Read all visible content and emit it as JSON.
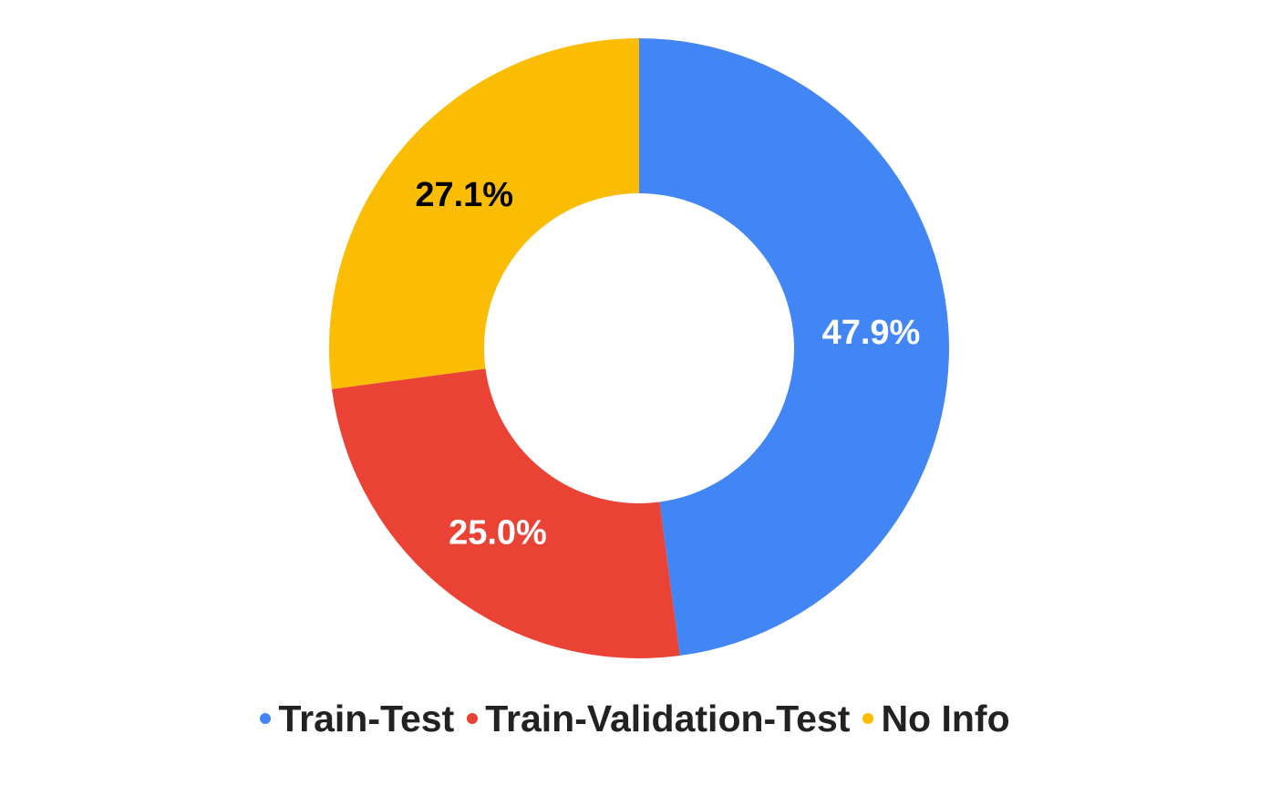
{
  "chart_data": {
    "type": "pie",
    "donut": true,
    "legend_position": "bottom",
    "title": "",
    "slices": [
      {
        "name": "Train-Test",
        "value": 47.9,
        "label": "47.9%",
        "color": "#4285F4",
        "label_color": "#ffffff"
      },
      {
        "name": "Train-Validation-Test",
        "value": 25.0,
        "label": "25.0%",
        "color": "#EA4335",
        "label_color": "#ffffff"
      },
      {
        "name": "No Info",
        "value": 27.1,
        "label": "27.1%",
        "color": "#FBBC04",
        "label_color": "#000000"
      }
    ]
  }
}
